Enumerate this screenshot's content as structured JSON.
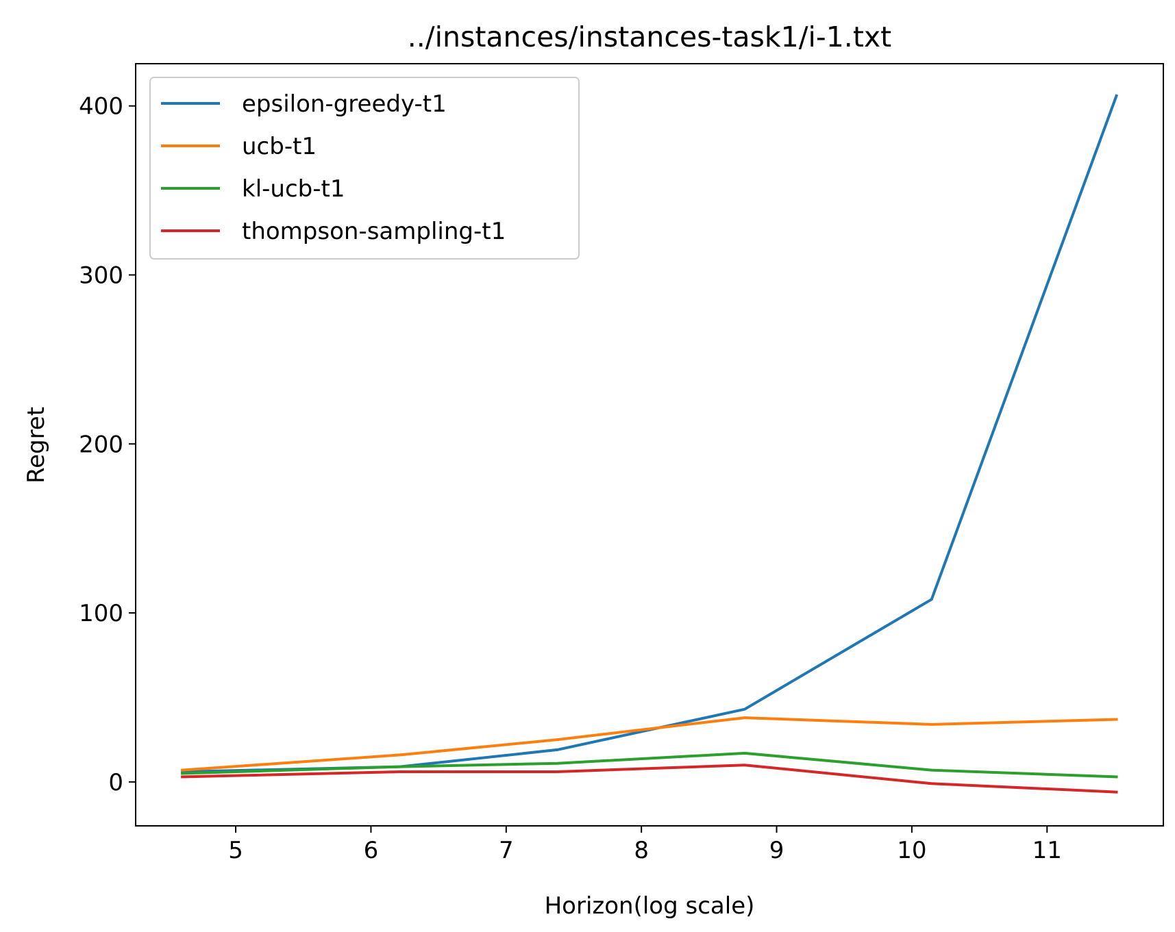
{
  "chart_data": {
    "type": "line",
    "title": "../instances/instances-task1/i-1.txt",
    "xlabel": "Horizon(log scale)",
    "ylabel": "Regret",
    "x": [
      4.605,
      6.215,
      7.378,
      8.764,
      10.146,
      11.513
    ],
    "xlim": [
      4.26,
      11.86
    ],
    "ylim": [
      -26,
      425
    ],
    "xticks": [
      5,
      6,
      7,
      8,
      9,
      10,
      11
    ],
    "yticks": [
      0,
      100,
      200,
      300,
      400
    ],
    "grid": false,
    "legend_position": "top-left",
    "series": [
      {
        "name": "epsilon-greedy-t1",
        "color": "#1f77b4",
        "values": [
          6,
          9,
          19,
          43,
          108,
          406
        ]
      },
      {
        "name": "ucb-t1",
        "color": "#ff7f0e",
        "values": [
          7,
          16,
          25,
          38,
          34,
          37
        ]
      },
      {
        "name": "kl-ucb-t1",
        "color": "#2ca02c",
        "values": [
          5,
          9,
          11,
          17,
          7,
          3
        ]
      },
      {
        "name": "thompson-sampling-t1",
        "color": "#d62728",
        "values": [
          3,
          6,
          6,
          10,
          -1,
          -6
        ]
      }
    ]
  }
}
